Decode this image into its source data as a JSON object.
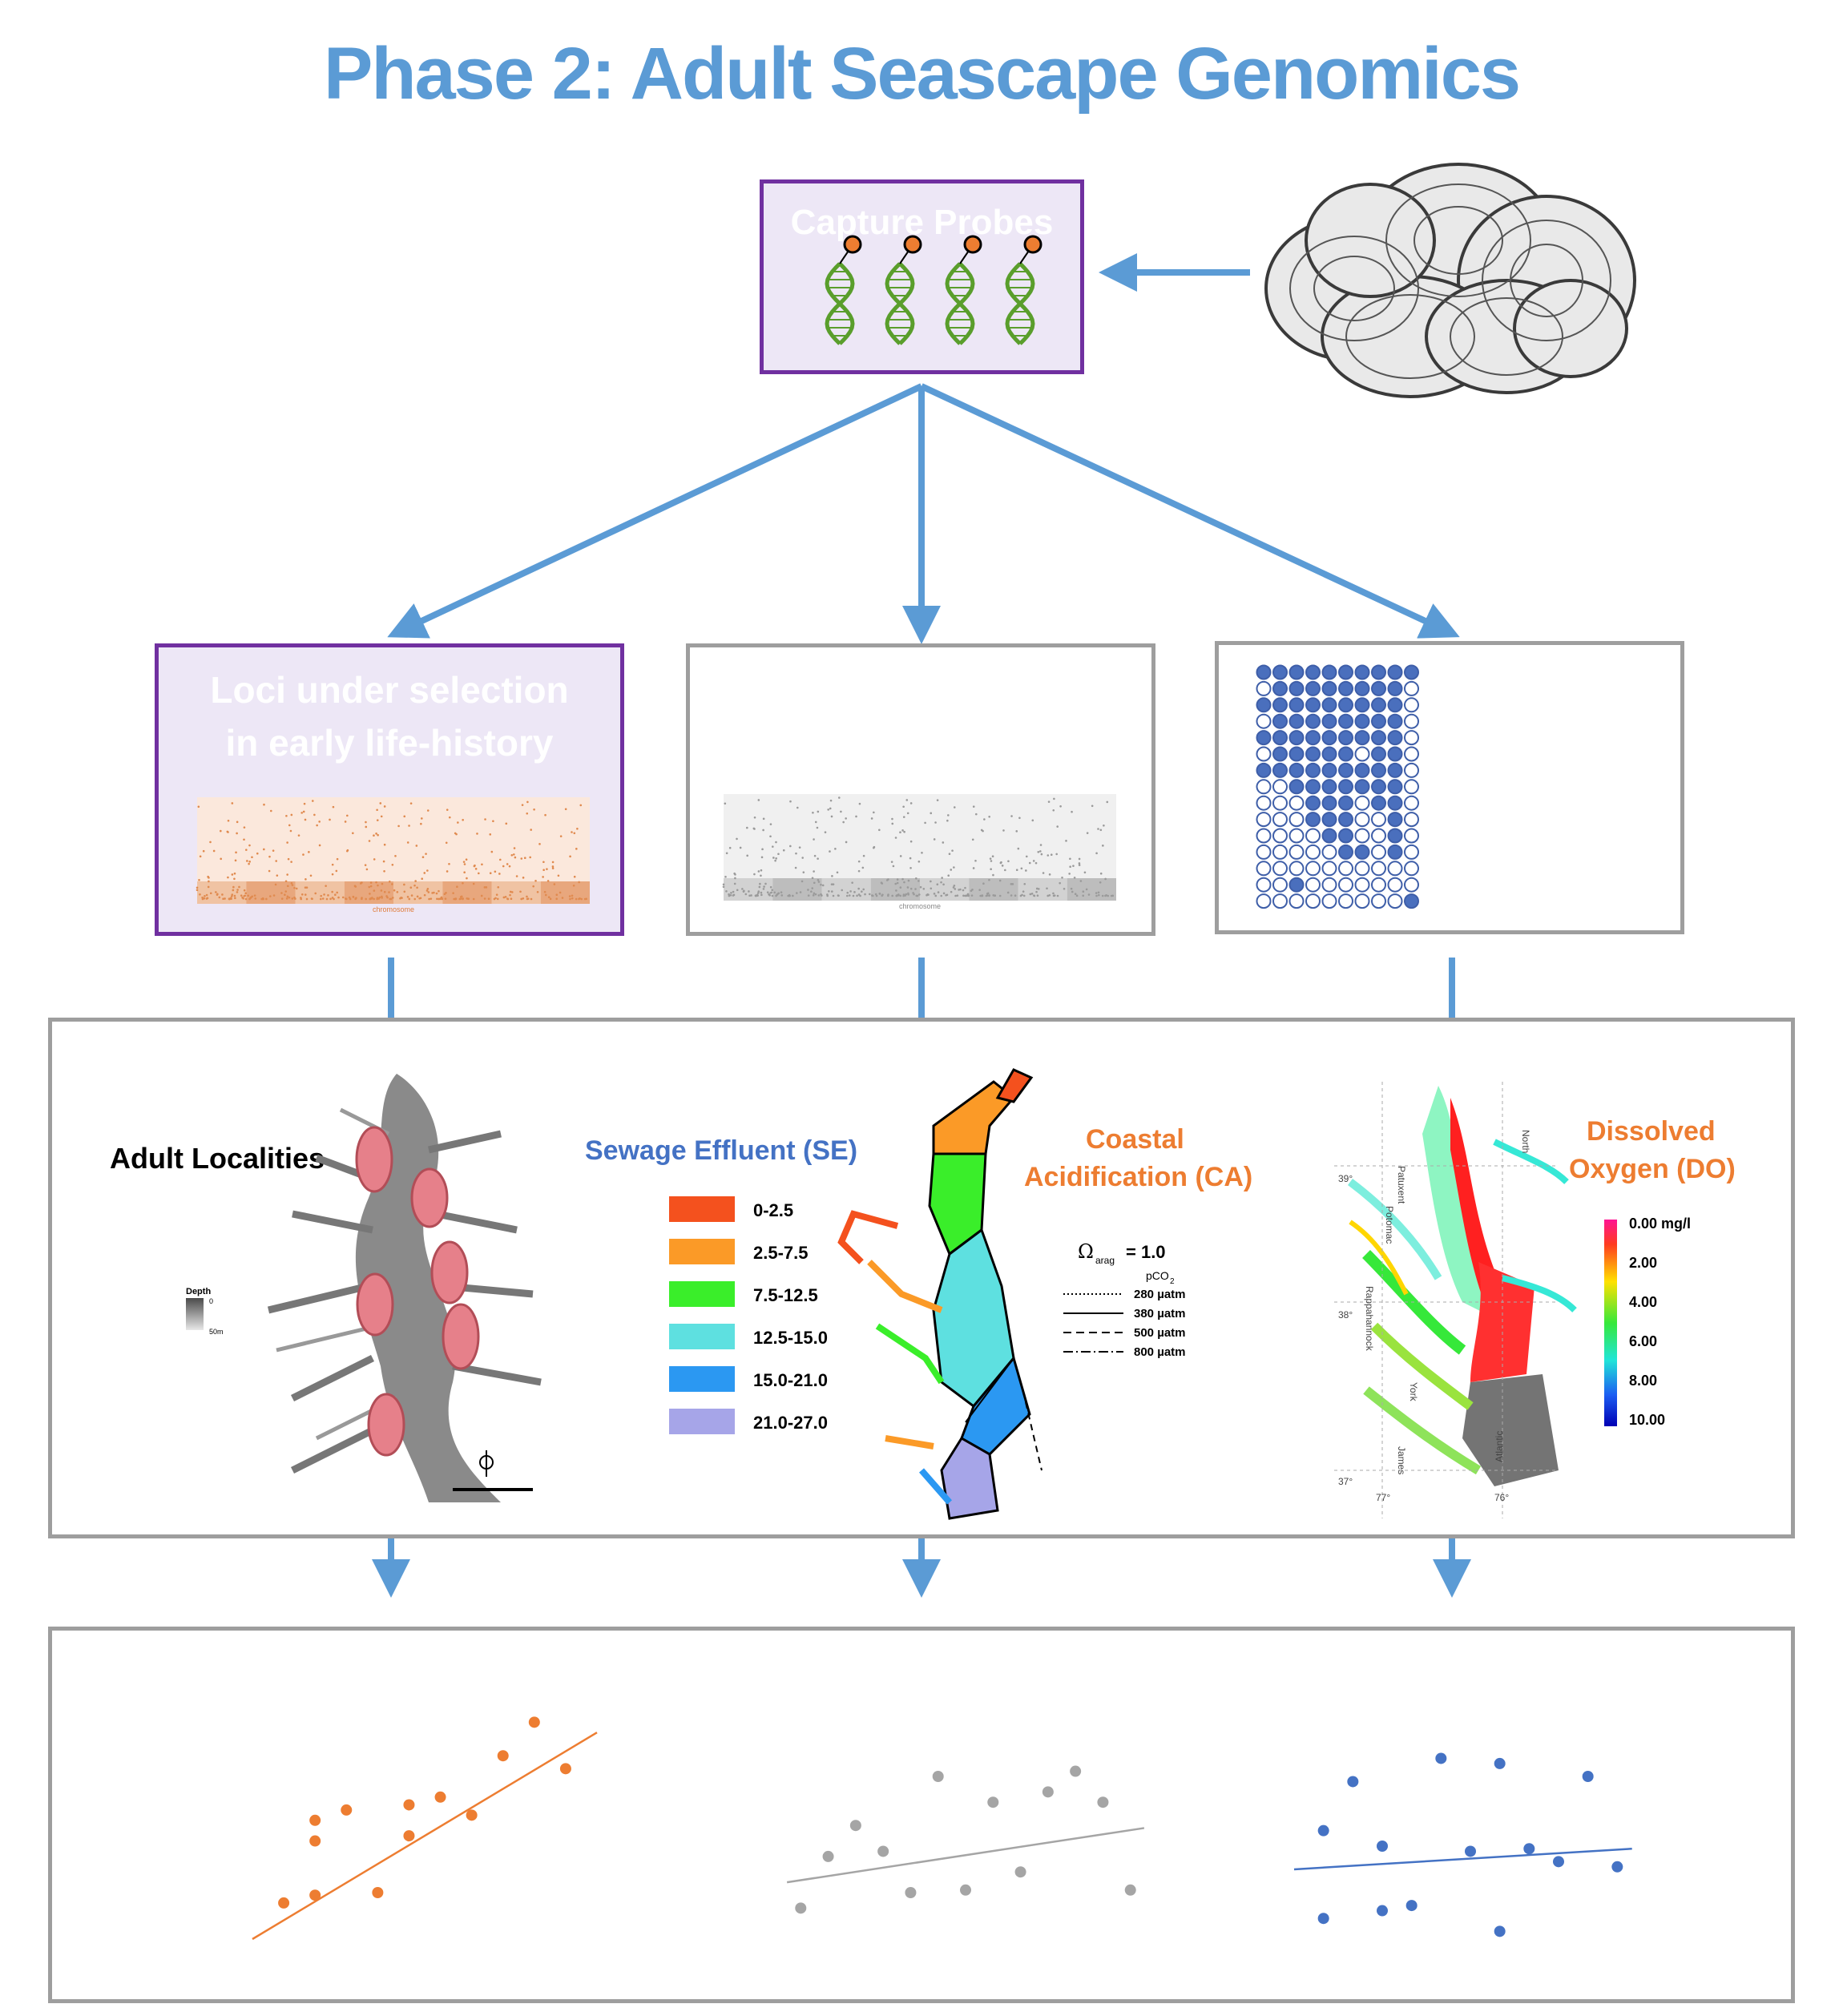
{
  "title": "Phase 2: Adult Seascape Genomics",
  "capture_box": {
    "title": "Capture Probes",
    "icon": "dna-probe-icon"
  },
  "oyster_image": {
    "icon": "oyster-cluster-illustration"
  },
  "panel_loci": {
    "title": "Loci under selection in early life-history",
    "xlabel": "chromosome"
  },
  "panel_manhattan_gray": {
    "xlabel": "chromosome"
  },
  "panel_dots": {
    "rows": 15,
    "cols": 10,
    "filled_pattern": [
      "1111111111",
      "0111111110",
      "1111111110",
      "0111111110",
      "1111111110",
      "0111110110",
      "1111111110",
      "0011111110",
      "0001110110",
      "0001110010",
      "0000110010",
      "0000011010",
      "0000000000",
      "0010000000",
      "0000000001"
    ]
  },
  "env_panel": {
    "adult_localities": {
      "label": "Adult Localities",
      "legend_title": "Depth",
      "legend_min": "0",
      "legend_max": "50m"
    },
    "sewage": {
      "label": "Sewage Effluent (SE)",
      "legend": [
        {
          "range": "0-2.5",
          "color": "#f4511e"
        },
        {
          "range": "2.5-7.5",
          "color": "#fb9a27"
        },
        {
          "range": "7.5-12.5",
          "color": "#3aee2a"
        },
        {
          "range": "12.5-15.0",
          "color": "#5ee0e0"
        },
        {
          "range": "15.0-21.0",
          "color": "#2b98f2"
        },
        {
          "range": "21.0-27.0",
          "color": "#a6a5e8"
        }
      ]
    },
    "acidification": {
      "label_line1": "Coastal",
      "label_line2": "Acidification (CA)",
      "omega": "Ω",
      "omega_sub": "arag",
      "omega_value": "= 1.0",
      "pco2": "pCO",
      "pco2_sub": "2",
      "lines": [
        "280 µatm",
        "380 µatm",
        "500 µatm",
        "800 µatm"
      ]
    },
    "oxygen": {
      "label_line1": "Dissolved",
      "label_line2": "Oxygen (DO)",
      "ticks": [
        "0.00 mg/l",
        "2.00",
        "4.00",
        "6.00",
        "8.00",
        "10.00"
      ],
      "map_labels": [
        "Patuxent",
        "Potomac",
        "Rappahannock",
        "York",
        "James",
        "Atlantic",
        "North",
        "39°",
        "38°",
        "37°",
        "77°",
        "76°"
      ]
    }
  },
  "regressions": [
    {
      "color": "#ed7d31",
      "points": [
        [
          1,
          1.4
        ],
        [
          2,
          1.7
        ],
        [
          2,
          3.8
        ],
        [
          2,
          4.6
        ],
        [
          3,
          5.0
        ],
        [
          4,
          1.8
        ],
        [
          5,
          5.2
        ],
        [
          5,
          4.0
        ],
        [
          6,
          5.5
        ],
        [
          7,
          4.8
        ],
        [
          8,
          7.1
        ],
        [
          9,
          8.4
        ],
        [
          10,
          6.6
        ]
      ],
      "fit": [
        [
          0,
          0
        ],
        [
          11,
          8.0
        ]
      ]
    },
    {
      "color": "#a5a5a5",
      "points": [
        [
          1,
          1.2
        ],
        [
          2,
          3.2
        ],
        [
          3,
          4.4
        ],
        [
          4,
          3.4
        ],
        [
          5,
          1.8
        ],
        [
          6,
          6.3
        ],
        [
          7,
          1.9
        ],
        [
          8,
          5.3
        ],
        [
          9,
          2.6
        ],
        [
          10,
          5.7
        ],
        [
          11,
          6.5
        ],
        [
          12,
          5.3
        ],
        [
          13,
          1.9
        ]
      ],
      "fit": [
        [
          0.5,
          2.2
        ],
        [
          13.5,
          4.3
        ]
      ]
    },
    {
      "color": "#4472c4",
      "points": [
        [
          1,
          4.2
        ],
        [
          1,
          0.8
        ],
        [
          2,
          6.1
        ],
        [
          3,
          1.1
        ],
        [
          3,
          3.6
        ],
        [
          4,
          1.3
        ],
        [
          5,
          7.0
        ],
        [
          6,
          3.4
        ],
        [
          7,
          6.8
        ],
        [
          7,
          0.3
        ],
        [
          8,
          3.5
        ],
        [
          9,
          3.0
        ],
        [
          10,
          6.3
        ],
        [
          11,
          2.8
        ]
      ],
      "fit": [
        [
          0,
          2.7
        ],
        [
          11.5,
          3.5
        ]
      ]
    }
  ]
}
